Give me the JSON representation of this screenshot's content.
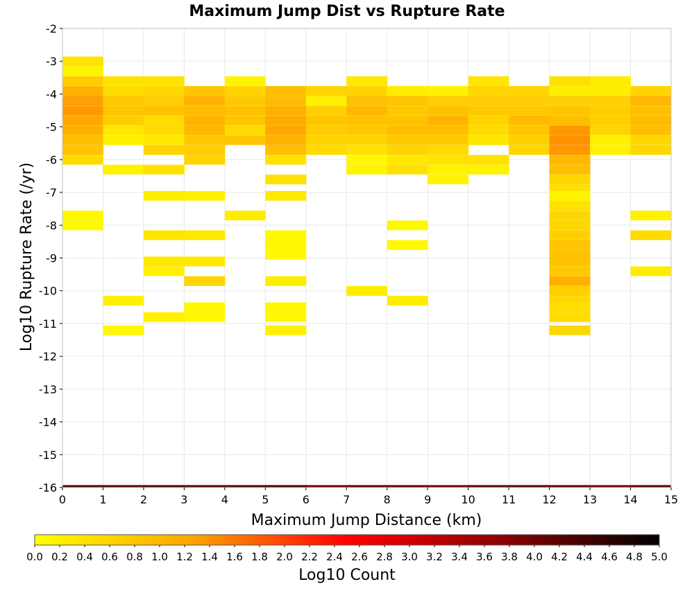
{
  "chart_data": {
    "type": "heatmap",
    "title": "Maximum Jump Dist vs Rupture Rate",
    "xlabel": "Maximum Jump Distance (km)",
    "ylabel": "Log10 Rupture Rate (/yr)",
    "xlim": [
      0,
      15
    ],
    "ylim": [
      -16,
      -2
    ],
    "x_ticks": [
      "0",
      "1",
      "2",
      "3",
      "4",
      "5",
      "6",
      "7",
      "8",
      "9",
      "10",
      "11",
      "12",
      "13",
      "14",
      "15"
    ],
    "y_ticks": [
      "-2",
      "-3",
      "-4",
      "-5",
      "-6",
      "-7",
      "-8",
      "-9",
      "-10",
      "-11",
      "-12",
      "-13",
      "-14",
      "-15",
      "-16"
    ],
    "x_bin_width": 1,
    "y_bin_width": 0.2857,
    "colorbar": {
      "label": "Log10 Count",
      "range": [
        0,
        5
      ],
      "ticks": [
        "0.0",
        "0.2",
        "0.4",
        "0.6",
        "0.8",
        "1.0",
        "1.2",
        "1.4",
        "1.6",
        "1.8",
        "2.0",
        "2.2",
        "2.4",
        "2.6",
        "2.8",
        "3.0",
        "3.2",
        "3.4",
        "3.6",
        "3.8",
        "4.0",
        "4.2",
        "4.4",
        "4.6",
        "4.8",
        "5.0"
      ],
      "colors": [
        "#ffff00",
        "#ffa500",
        "#ff0000",
        "#8b0000",
        "#000000"
      ]
    },
    "grid": true,
    "cells": [
      [
        0,
        -3.0,
        0.4
      ],
      [
        0,
        -3.3,
        0.15
      ],
      [
        0,
        -3.6,
        0.7
      ],
      [
        0,
        -3.9,
        1.05
      ],
      [
        0,
        -4.2,
        1.3
      ],
      [
        0,
        -4.5,
        1.35
      ],
      [
        0,
        -4.8,
        1.2
      ],
      [
        0,
        -5.1,
        1.1
      ],
      [
        0,
        -5.4,
        0.9
      ],
      [
        0,
        -5.7,
        0.8
      ],
      [
        0,
        -6.0,
        0.5
      ],
      [
        0,
        -7.7,
        0.1
      ],
      [
        0,
        -8.0,
        0.1
      ],
      [
        1,
        -3.6,
        0.4
      ],
      [
        1,
        -3.9,
        0.5
      ],
      [
        1,
        -4.2,
        0.75
      ],
      [
        1,
        -4.5,
        0.8
      ],
      [
        1,
        -4.8,
        0.7
      ],
      [
        1,
        -5.1,
        0.3
      ],
      [
        1,
        -5.4,
        0.2
      ],
      [
        1,
        -6.3,
        0.2
      ],
      [
        1,
        -10.3,
        0.2
      ],
      [
        1,
        -11.2,
        0.1
      ],
      [
        2,
        -3.6,
        0.4
      ],
      [
        2,
        -3.9,
        0.55
      ],
      [
        2,
        -4.2,
        0.7
      ],
      [
        2,
        -4.5,
        0.85
      ],
      [
        2,
        -4.8,
        0.5
      ],
      [
        2,
        -5.1,
        0.5
      ],
      [
        2,
        -5.4,
        0.3
      ],
      [
        2,
        -5.7,
        0.6
      ],
      [
        2,
        -6.3,
        0.4
      ],
      [
        2,
        -7.1,
        0.25
      ],
      [
        2,
        -8.3,
        0.35
      ],
      [
        2,
        -9.1,
        0.3
      ],
      [
        2,
        -9.4,
        0.2
      ],
      [
        2,
        -10.8,
        0.2
      ],
      [
        3,
        -3.9,
        0.8
      ],
      [
        3,
        -4.2,
        1.05
      ],
      [
        3,
        -4.5,
        0.95
      ],
      [
        3,
        -4.8,
        1.05
      ],
      [
        3,
        -5.1,
        1.0
      ],
      [
        3,
        -5.4,
        0.75
      ],
      [
        3,
        -5.7,
        0.7
      ],
      [
        3,
        -6.0,
        0.6
      ],
      [
        3,
        -7.1,
        0.2
      ],
      [
        3,
        -8.3,
        0.3
      ],
      [
        3,
        -9.1,
        0.3
      ],
      [
        3,
        -9.7,
        0.6
      ],
      [
        3,
        -10.5,
        0.1
      ],
      [
        3,
        -10.8,
        0.1
      ],
      [
        4,
        -3.6,
        0.15
      ],
      [
        4,
        -3.9,
        0.6
      ],
      [
        4,
        -4.2,
        0.75
      ],
      [
        4,
        -4.5,
        0.85
      ],
      [
        4,
        -4.8,
        0.8
      ],
      [
        4,
        -5.1,
        0.5
      ],
      [
        4,
        -5.4,
        0.8
      ],
      [
        4,
        -7.7,
        0.25
      ],
      [
        5,
        -3.9,
        0.9
      ],
      [
        5,
        -4.2,
        0.95
      ],
      [
        5,
        -4.5,
        1.1
      ],
      [
        5,
        -4.8,
        1.15
      ],
      [
        5,
        -5.1,
        1.2
      ],
      [
        5,
        -5.4,
        1.05
      ],
      [
        5,
        -5.7,
        0.9
      ],
      [
        5,
        -6.0,
        0.4
      ],
      [
        5,
        -6.6,
        0.4
      ],
      [
        5,
        -7.1,
        0.3
      ],
      [
        5,
        -8.3,
        0.1
      ],
      [
        5,
        -8.6,
        0.1
      ],
      [
        5,
        -8.9,
        0.1
      ],
      [
        5,
        -9.7,
        0.25
      ],
      [
        5,
        -10.5,
        0.1
      ],
      [
        5,
        -10.8,
        0.1
      ],
      [
        5,
        -11.2,
        0.2
      ],
      [
        6,
        -3.9,
        0.6
      ],
      [
        6,
        -4.2,
        0.2
      ],
      [
        6,
        -4.5,
        0.65
      ],
      [
        6,
        -4.8,
        0.8
      ],
      [
        6,
        -5.1,
        0.7
      ],
      [
        6,
        -5.4,
        0.6
      ],
      [
        6,
        -5.7,
        0.5
      ],
      [
        7,
        -3.6,
        0.3
      ],
      [
        7,
        -3.9,
        0.6
      ],
      [
        7,
        -4.2,
        0.85
      ],
      [
        7,
        -4.5,
        1.0
      ],
      [
        7,
        -4.8,
        0.85
      ],
      [
        7,
        -5.1,
        0.75
      ],
      [
        7,
        -5.4,
        0.6
      ],
      [
        7,
        -5.7,
        0.4
      ],
      [
        7,
        -6.0,
        0.1
      ],
      [
        7,
        -6.3,
        0.15
      ],
      [
        7,
        -10.0,
        0.25
      ],
      [
        8,
        -3.9,
        0.25
      ],
      [
        8,
        -4.2,
        0.8
      ],
      [
        8,
        -4.5,
        0.75
      ],
      [
        8,
        -4.8,
        0.85
      ],
      [
        8,
        -5.1,
        0.9
      ],
      [
        8,
        -5.4,
        0.75
      ],
      [
        8,
        -5.7,
        0.6
      ],
      [
        8,
        -6.0,
        0.3
      ],
      [
        8,
        -6.3,
        0.45
      ],
      [
        8,
        -8.0,
        0.1
      ],
      [
        8,
        -8.6,
        0.1
      ],
      [
        8,
        -10.3,
        0.25
      ],
      [
        9,
        -3.9,
        0.2
      ],
      [
        9,
        -4.2,
        0.7
      ],
      [
        9,
        -4.5,
        0.85
      ],
      [
        9,
        -4.8,
        1.05
      ],
      [
        9,
        -5.1,
        0.9
      ],
      [
        9,
        -5.4,
        0.75
      ],
      [
        9,
        -5.7,
        0.5
      ],
      [
        9,
        -6.0,
        0.4
      ],
      [
        9,
        -6.3,
        0.15
      ],
      [
        9,
        -6.6,
        0.15
      ],
      [
        10,
        -3.6,
        0.35
      ],
      [
        10,
        -3.9,
        0.6
      ],
      [
        10,
        -4.2,
        0.7
      ],
      [
        10,
        -4.5,
        0.75
      ],
      [
        10,
        -4.8,
        0.6
      ],
      [
        10,
        -5.1,
        0.5
      ],
      [
        10,
        -5.4,
        0.35
      ],
      [
        10,
        -6.0,
        0.4
      ],
      [
        10,
        -6.3,
        0.2
      ],
      [
        11,
        -3.9,
        0.6
      ],
      [
        11,
        -4.2,
        0.7
      ],
      [
        11,
        -4.5,
        0.75
      ],
      [
        11,
        -4.8,
        0.95
      ],
      [
        11,
        -5.1,
        0.8
      ],
      [
        11,
        -5.4,
        0.65
      ],
      [
        11,
        -5.7,
        0.6
      ],
      [
        12,
        -3.6,
        0.45
      ],
      [
        12,
        -3.9,
        0.25
      ],
      [
        12,
        -4.2,
        0.65
      ],
      [
        12,
        -4.5,
        0.8
      ],
      [
        12,
        -4.8,
        0.9
      ],
      [
        12,
        -5.1,
        1.35
      ],
      [
        12,
        -5.4,
        1.4
      ],
      [
        12,
        -5.7,
        1.35
      ],
      [
        12,
        -6.0,
        1.0
      ],
      [
        12,
        -6.3,
        0.9
      ],
      [
        12,
        -6.6,
        0.55
      ],
      [
        12,
        -6.9,
        0.45
      ],
      [
        12,
        -7.1,
        0.15
      ],
      [
        12,
        -7.4,
        0.4
      ],
      [
        12,
        -7.7,
        0.55
      ],
      [
        12,
        -8.0,
        0.55
      ],
      [
        12,
        -8.3,
        0.65
      ],
      [
        12,
        -8.6,
        0.8
      ],
      [
        12,
        -8.9,
        0.85
      ],
      [
        12,
        -9.1,
        0.85
      ],
      [
        12,
        -9.4,
        0.75
      ],
      [
        12,
        -9.7,
        1.1
      ],
      [
        12,
        -10.0,
        0.65
      ],
      [
        12,
        -10.3,
        0.55
      ],
      [
        12,
        -10.5,
        0.45
      ],
      [
        12,
        -10.8,
        0.5
      ],
      [
        12,
        -11.2,
        0.55
      ],
      [
        13,
        -3.6,
        0.25
      ],
      [
        13,
        -3.9,
        0.25
      ],
      [
        13,
        -4.2,
        0.65
      ],
      [
        13,
        -4.5,
        0.7
      ],
      [
        13,
        -4.8,
        0.65
      ],
      [
        13,
        -5.1,
        0.6
      ],
      [
        13,
        -5.4,
        0.2
      ],
      [
        13,
        -5.7,
        0.2
      ],
      [
        14,
        -3.9,
        0.6
      ],
      [
        14,
        -4.2,
        1.0
      ],
      [
        14,
        -4.5,
        0.85
      ],
      [
        14,
        -4.8,
        0.95
      ],
      [
        14,
        -5.1,
        0.9
      ],
      [
        14,
        -5.4,
        0.55
      ],
      [
        14,
        -5.7,
        0.55
      ],
      [
        14,
        -7.7,
        0.2
      ],
      [
        14,
        -8.3,
        0.5
      ],
      [
        14,
        -9.4,
        0.25
      ]
    ],
    "bottom_row": {
      "y": -16,
      "values": [
        4.3,
        4.2,
        4.3,
        4.2,
        4.25,
        4.4,
        4.0,
        4.1,
        4.1,
        4.0,
        4.2,
        4.2,
        4.1,
        3.95,
        4.2
      ]
    }
  }
}
